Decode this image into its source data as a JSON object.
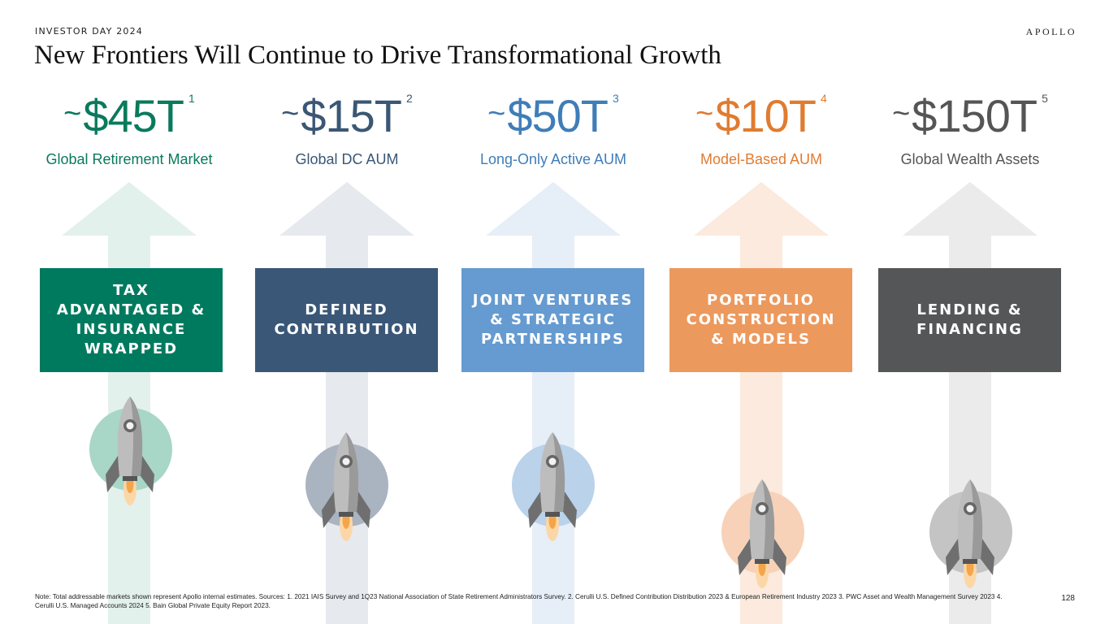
{
  "header": {
    "kicker": "INVESTOR DAY 2024",
    "brand": "APOLLO",
    "title": "New Frontiers Will Continue to Drive Transformational Growth"
  },
  "columns": [
    {
      "tilde": "~",
      "amount": "$45T",
      "footnote": "1",
      "subtitle": "Global Retirement Market",
      "box_label": "TAX ADVANTAGED & INSURANCE WRAPPED",
      "text_color": "#0a7a5c",
      "box_color": "#007a5e",
      "arrow_color": "#e3f1ec",
      "circle_color": "#a8d6c7"
    },
    {
      "tilde": "~",
      "amount": "$15T",
      "footnote": "2",
      "subtitle": "Global DC AUM",
      "box_label": "DEFINED CONTRIBUTION",
      "text_color": "#3a5775",
      "box_color": "#3a5777",
      "arrow_color": "#e6e9ee",
      "circle_color": "#aab3c0"
    },
    {
      "tilde": "~",
      "amount": "$50T",
      "footnote": "3",
      "subtitle": "Long-Only Active AUM",
      "box_label": "JOINT VENTURES & STRATEGIC PARTNERSHIPS",
      "text_color": "#3f7db8",
      "box_color": "#659bd0",
      "arrow_color": "#e6eef7",
      "circle_color": "#bad2ea"
    },
    {
      "tilde": "~",
      "amount": "$10T",
      "footnote": "4",
      "subtitle": "Model-Based AUM",
      "box_label": "PORTFOLIO CONSTRUCTION & MODELS",
      "text_color": "#e07b30",
      "box_color": "#ec995e",
      "arrow_color": "#fbeadd",
      "circle_color": "#f7d2b8"
    },
    {
      "tilde": "~",
      "amount": "$150T",
      "footnote": "5",
      "subtitle": "Global Wealth Assets",
      "box_label": "LENDING & FINANCING",
      "text_color": "#555555",
      "box_color": "#545657",
      "arrow_color": "#ebebeb",
      "circle_color": "#c4c4c4"
    }
  ],
  "footer": {
    "note": "Note: Total addressable markets shown represent Apollo internal estimates. Sources: 1. 2021 IAIS Survey and 1Q23 National Association of State Retirement Administrators Survey. 2. Cerulli U.S. Defined Contribution Distribution 2023 & European Retirement Industry 2023 3. PWC Asset and Wealth Management Survey 2023 4. Cerulli U.S. Managed Accounts 2024 5. Bain Global Private Equity Report 2023.",
    "page_number": "128"
  }
}
